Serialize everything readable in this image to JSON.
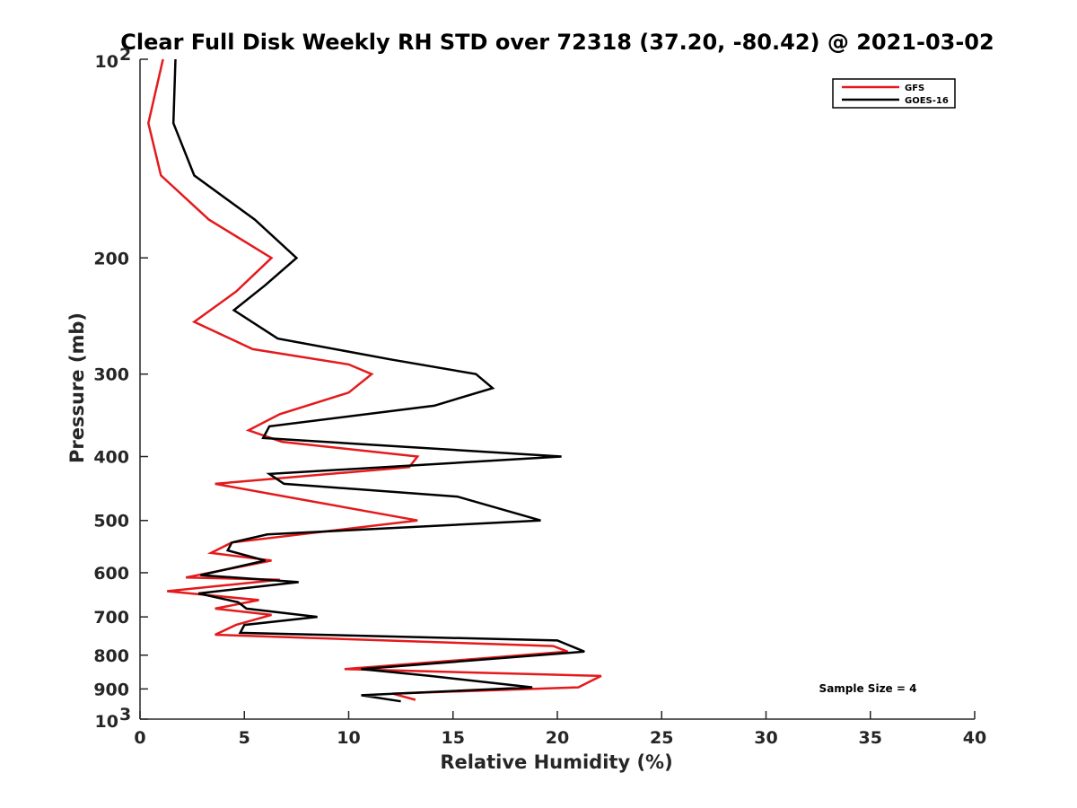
{
  "chart_data": {
    "type": "line",
    "title": "Clear Full Disk Weekly RH STD over 72318 (37.20, -80.42) @ 2021-03-02",
    "xlabel": "Relative Humidity (%)",
    "ylabel": "Pressure (mb)",
    "xlim": [
      0,
      40
    ],
    "ylim": [
      100,
      1000
    ],
    "y_scale": "log",
    "y_reversed": true,
    "grid": false,
    "legend_position": "top-right",
    "x_ticks": [
      0,
      5,
      10,
      15,
      20,
      25,
      30,
      35,
      40
    ],
    "x_tick_labels": [
      "0",
      "5",
      "10",
      "15",
      "20",
      "25",
      "30",
      "35",
      "40"
    ],
    "y_ticks": [
      200,
      300,
      400,
      500,
      600,
      700,
      800,
      900
    ],
    "y_tick_labels": [
      "200",
      "300",
      "400",
      "500",
      "600",
      "700",
      "800",
      "900"
    ],
    "y_decade_ticks": [
      {
        "value": 100,
        "base": "10",
        "exp": "2"
      },
      {
        "value": 1000,
        "base": "10",
        "exp": "3"
      }
    ],
    "series": [
      {
        "name": "GFS",
        "color": "#e41a1c",
        "points": [
          [
            1.1,
            100
          ],
          [
            0.4,
            125
          ],
          [
            1.0,
            150
          ],
          [
            3.3,
            175
          ],
          [
            6.3,
            200
          ],
          [
            4.6,
            225
          ],
          [
            2.6,
            250
          ],
          [
            5.4,
            275
          ],
          [
            10.0,
            290
          ],
          [
            11.1,
            300
          ],
          [
            10.0,
            320
          ],
          [
            6.7,
            345
          ],
          [
            5.2,
            365
          ],
          [
            6.8,
            380
          ],
          [
            13.3,
            400
          ],
          [
            12.9,
            415
          ],
          [
            3.6,
            440
          ],
          [
            7.8,
            465
          ],
          [
            13.3,
            500
          ],
          [
            4.4,
            540
          ],
          [
            3.4,
            560
          ],
          [
            6.3,
            575
          ],
          [
            2.2,
            610
          ],
          [
            6.7,
            615
          ],
          [
            1.3,
            640
          ],
          [
            5.7,
            660
          ],
          [
            3.6,
            680
          ],
          [
            6.3,
            695
          ],
          [
            4.6,
            720
          ],
          [
            3.6,
            745
          ],
          [
            19.8,
            775
          ],
          [
            20.5,
            790
          ],
          [
            9.8,
            840
          ],
          [
            22.1,
            860
          ],
          [
            21.0,
            895
          ],
          [
            12.1,
            915
          ],
          [
            13.2,
            935
          ]
        ]
      },
      {
        "name": "GOES-16",
        "color": "#000000",
        "points": [
          [
            1.7,
            100
          ],
          [
            1.6,
            125
          ],
          [
            2.6,
            150
          ],
          [
            5.5,
            175
          ],
          [
            7.5,
            200
          ],
          [
            6.0,
            220
          ],
          [
            4.5,
            240
          ],
          [
            6.6,
            265
          ],
          [
            12.0,
            285
          ],
          [
            16.1,
            300
          ],
          [
            16.9,
            315
          ],
          [
            14.1,
            335
          ],
          [
            6.2,
            360
          ],
          [
            5.9,
            375
          ],
          [
            20.2,
            400
          ],
          [
            6.2,
            425
          ],
          [
            6.9,
            440
          ],
          [
            15.2,
            460
          ],
          [
            19.2,
            500
          ],
          [
            6.1,
            525
          ],
          [
            4.4,
            540
          ],
          [
            4.2,
            555
          ],
          [
            6.0,
            575
          ],
          [
            2.9,
            605
          ],
          [
            7.6,
            620
          ],
          [
            2.8,
            645
          ],
          [
            4.7,
            665
          ],
          [
            5.1,
            680
          ],
          [
            8.5,
            700
          ],
          [
            5.0,
            720
          ],
          [
            4.8,
            740
          ],
          [
            20.0,
            760
          ],
          [
            21.3,
            790
          ],
          [
            10.6,
            840
          ],
          [
            13.9,
            860
          ],
          [
            18.8,
            895
          ],
          [
            10.6,
            920
          ],
          [
            12.5,
            940
          ]
        ]
      }
    ],
    "annotations": [
      "Sample Size = 4"
    ]
  }
}
